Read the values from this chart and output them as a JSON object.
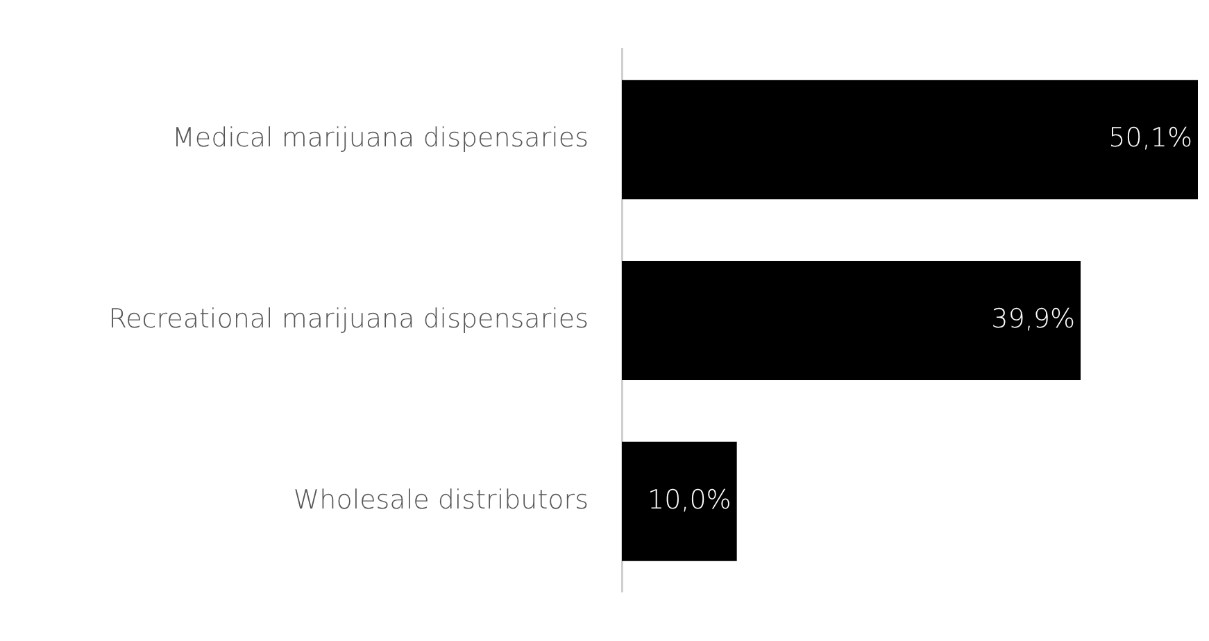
{
  "chart_data": {
    "type": "bar",
    "orientation": "horizontal",
    "categories": [
      "Medical marijuana dispensaries",
      "Recreational marijuana dispensaries",
      "Wholesale distributors"
    ],
    "values": [
      50.1,
      39.9,
      10.0
    ],
    "color": "#000000",
    "value_labels": [
      "50,1%",
      "39,9%",
      "10,0%"
    ],
    "xlim": [
      0,
      50.1
    ],
    "grid": false,
    "legend": false,
    "tick_labels": "y"
  }
}
